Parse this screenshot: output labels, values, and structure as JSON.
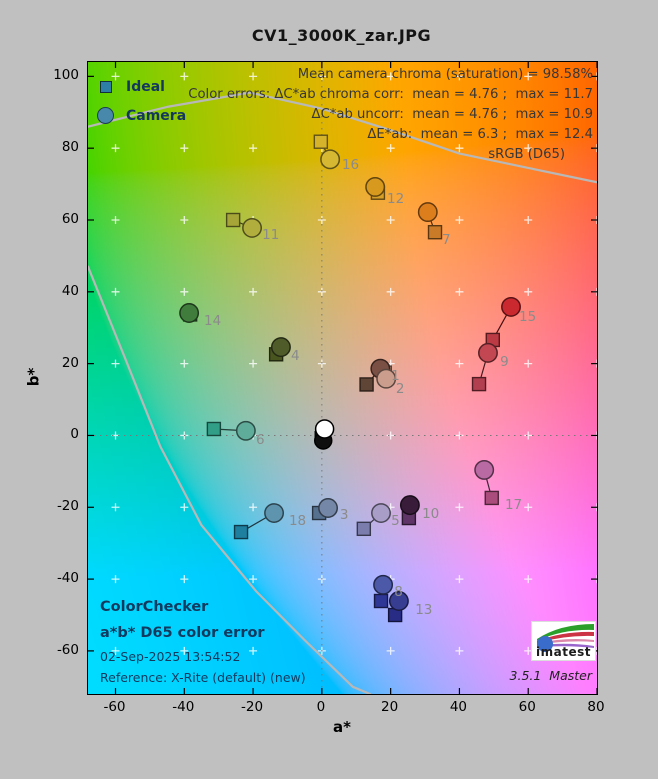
{
  "figure": {
    "background": "#c0c0c0"
  },
  "chart_data": {
    "type": "scatter",
    "title": "CV1_3000K_zar.JPG",
    "xlabel": "a*",
    "ylabel": "b*",
    "xlim": [
      -68,
      80
    ],
    "ylim": [
      -72,
      104
    ],
    "xticks": [
      -60,
      -40,
      -20,
      0,
      20,
      40,
      60,
      80
    ],
    "yticks": [
      -60,
      -40,
      -20,
      0,
      20,
      40,
      60,
      80,
      100
    ],
    "grid_step": 20,
    "background_L_star": 75,
    "legend": [
      {
        "label": "Ideal",
        "marker": "square",
        "fill": "#2e7fa8",
        "edge": "#14303f"
      },
      {
        "label": "Camera",
        "marker": "circle",
        "fill": "#4788ab",
        "edge": "#1d3d52"
      }
    ],
    "annotations": [
      "Mean camera chroma (saturation) = 98.58%",
      "Color errors: ΔC*ab chroma corr:  mean = 4.76 ;  max = 11.7",
      "ΔC*ab uncorr:  mean = 4.76 ;  max = 10.9",
      "ΔE*ab:  mean = 6.3 ;  max = 12.4",
      "sRGB (D65)"
    ],
    "info_block": [
      "ColorChecker",
      "a*b* D65 color error",
      "02-Sep-2025 13:54:52",
      "Reference: X-Rite (default) (new)"
    ],
    "logo_text": "imatest",
    "version": "3.5.1  Master",
    "label_color": "#8b8b8b",
    "gamut_boundary": [
      [
        [
          -68,
          86
        ],
        [
          -45,
          91.5
        ],
        [
          -21,
          95.5
        ],
        [
          0,
          91
        ],
        [
          20,
          85
        ],
        [
          40,
          78.5
        ],
        [
          60,
          74.5
        ],
        [
          80,
          70.5
        ]
      ],
      [
        [
          -68,
          47
        ],
        [
          -57,
          21
        ],
        [
          -47,
          -3
        ],
        [
          -35,
          -25
        ],
        [
          -19,
          -43.5
        ],
        [
          -5,
          -57
        ],
        [
          9,
          -70
        ],
        [
          14,
          -72
        ]
      ]
    ],
    "patches": [
      {
        "num": "1",
        "ideal": [
          13.0,
          14.2
        ],
        "camera": [
          17.0,
          18.6
        ],
        "ideal_color": "#5f4536",
        "camera_color": "#7a5044",
        "label_pos": [
          21.3,
          16.8
        ]
      },
      {
        "num": "2",
        "ideal": [
          18.3,
          17.5
        ],
        "camera": [
          18.7,
          15.8
        ],
        "ideal_color": "#bb8e7b",
        "camera_color": "#cb9d8d",
        "label_pos": [
          22.7,
          13.2
        ]
      },
      {
        "num": "3",
        "ideal": [
          -0.8,
          -21.6
        ],
        "camera": [
          1.8,
          -20.2
        ],
        "ideal_color": "#56718f",
        "camera_color": "#7487a6",
        "label_pos": [
          6.4,
          -21.9
        ]
      },
      {
        "num": "4",
        "ideal": [
          -13.3,
          22.6
        ],
        "camera": [
          -11.9,
          24.6
        ],
        "ideal_color": "#49551f",
        "camera_color": "#4f5c2a",
        "label_pos": [
          -7.8,
          22.4
        ]
      },
      {
        "num": "5",
        "ideal": [
          12.2,
          -26.0
        ],
        "camera": [
          17.2,
          -21.6
        ],
        "ideal_color": "#7b7dad",
        "camera_color": "#a79dc6",
        "label_pos": [
          21.3,
          -23.5
        ]
      },
      {
        "num": "6",
        "ideal": [
          -31.4,
          1.8
        ],
        "camera": [
          -22.1,
          1.3
        ],
        "ideal_color": "#319e87",
        "camera_color": "#60ac9b",
        "label_pos": [
          -18.0,
          -1.0
        ]
      },
      {
        "num": "7",
        "ideal": [
          32.9,
          56.6
        ],
        "camera": [
          30.8,
          62.2
        ],
        "ideal_color": "#c97b27",
        "camera_color": "#dc7e1c",
        "label_pos": [
          36.1,
          54.7
        ]
      },
      {
        "num": "8",
        "ideal": [
          17.2,
          -46.1
        ],
        "camera": [
          17.8,
          -41.6
        ],
        "ideal_color": "#2f3796",
        "camera_color": "#4c59a8",
        "label_pos": [
          22.2,
          -43.3
        ]
      },
      {
        "num": "9",
        "ideal": [
          45.7,
          14.3
        ],
        "camera": [
          48.3,
          23.0
        ],
        "ideal_color": "#b23f50",
        "camera_color": "#c24753",
        "label_pos": [
          53.0,
          20.7
        ]
      },
      {
        "num": "10",
        "ideal": [
          25.3,
          -23.0
        ],
        "camera": [
          25.6,
          -19.4
        ],
        "ideal_color": "#5e3566",
        "camera_color": "#381c3a",
        "label_pos": [
          30.3,
          -21.6
        ]
      },
      {
        "num": "11",
        "ideal": [
          -25.8,
          60.0
        ],
        "camera": [
          -20.3,
          57.8
        ],
        "ideal_color": "#a5a637",
        "camera_color": "#b1ae3e",
        "label_pos": [
          -16.2,
          56.1
        ]
      },
      {
        "num": "12",
        "ideal": [
          16.3,
          67.6
        ],
        "camera": [
          15.5,
          69.2
        ],
        "ideal_color": "#d79e28",
        "camera_color": "#d89a1e",
        "label_pos": [
          20.1,
          66.1
        ]
      },
      {
        "num": "13",
        "ideal": [
          21.3,
          -50.0
        ],
        "camera": [
          22.4,
          -46.1
        ],
        "ideal_color": "#282c85",
        "camera_color": "#373d91",
        "label_pos": [
          28.3,
          -48.3
        ]
      },
      {
        "num": "14",
        "ideal": [
          -38.3,
          33.7
        ],
        "camera": [
          -38.6,
          34.1
        ],
        "ideal_color": "#3a7a3a",
        "camera_color": "#407d3c",
        "label_pos": [
          -33.1,
          32.2
        ]
      },
      {
        "num": "15",
        "ideal": [
          49.7,
          26.6
        ],
        "camera": [
          55.0,
          35.8
        ],
        "ideal_color": "#bc3a44",
        "camera_color": "#cb2930",
        "label_pos": [
          58.5,
          33.3
        ]
      },
      {
        "num": "16",
        "ideal": [
          -0.3,
          81.8
        ],
        "camera": [
          2.4,
          76.9
        ],
        "ideal_color": "#d5b42c",
        "camera_color": "#d6b833",
        "label_pos": [
          7.0,
          75.6
        ]
      },
      {
        "num": "17",
        "ideal": [
          49.4,
          -17.4
        ],
        "camera": [
          47.2,
          -9.6
        ],
        "ideal_color": "#aa4d7c",
        "camera_color": "#ba6aa3",
        "label_pos": [
          54.4,
          -19.1
        ]
      },
      {
        "num": "18",
        "ideal": [
          -23.5,
          -26.9
        ],
        "camera": [
          -13.9,
          -21.6
        ],
        "ideal_color": "#1e7f9f",
        "camera_color": "#5f94ae",
        "label_pos": [
          -8.4,
          -23.5
        ]
      }
    ],
    "neutral_cluster": [
      {
        "shape": "square",
        "pos": [
          -0.2,
          -0.6
        ],
        "size": 12,
        "fill": "#262626",
        "edge": "#000000"
      },
      {
        "shape": "circle",
        "pos": [
          0.4,
          -1.4
        ],
        "r": 8.5,
        "fill": "#0f0f0f",
        "edge": "#000000"
      },
      {
        "shape": "circle",
        "pos": [
          0.8,
          1.8
        ],
        "r": 9,
        "fill": "#ffffff",
        "edge": "#000000"
      }
    ]
  }
}
